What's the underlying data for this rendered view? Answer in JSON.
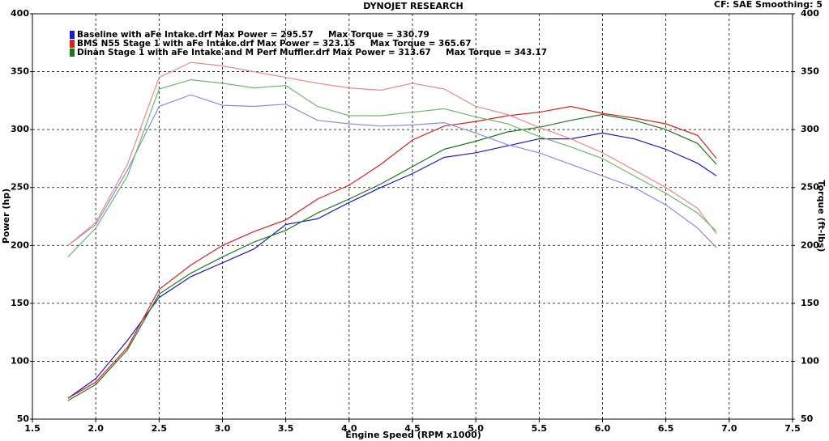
{
  "chart_data": {
    "type": "line",
    "title": "DYNOJET RESEARCH",
    "subtitle": "CF: SAE  Smoothing: 5",
    "xlabel": "Engine Speed (RPM x1000)",
    "ylabel": "Power (hp)",
    "y2label": "Torque (ft-lbs)",
    "xlim": [
      1.5,
      7.5
    ],
    "xticks": [
      1.5,
      {
        "value": 2,
        "label": "2.0"
      },
      2.5,
      {
        "value": 3,
        "label": "3.0"
      },
      3.5,
      {
        "value": 4,
        "label": "4.0"
      },
      4.5,
      {
        "value": 5,
        "label": "5.0"
      },
      5.5,
      {
        "value": 6,
        "label": "6.0"
      },
      6.5,
      {
        "value": 7,
        "label": "7.0"
      },
      7.5
    ],
    "ylim": [
      50,
      400
    ],
    "yticks": [
      50,
      100,
      150,
      200,
      250,
      300,
      350,
      400
    ],
    "y2lim": [
      50,
      400
    ],
    "y2ticks": [
      50,
      100,
      150,
      200,
      250,
      300,
      350,
      400
    ],
    "grid": true,
    "x": [
      1.78,
      2.0,
      2.25,
      2.5,
      2.75,
      3.0,
      3.25,
      3.5,
      3.75,
      4.0,
      4.25,
      4.5,
      4.75,
      5.0,
      5.25,
      5.5,
      5.75,
      6.0,
      6.25,
      6.5,
      6.75,
      6.9
    ],
    "series": [
      {
        "name": "Baseline with aFe Intake.drf Max Power = 295.57     Max Torque = 330.79",
        "color": "#1b1bc8",
        "values": [
          68,
          85,
          118,
          155,
          173,
          185,
          197,
          218,
          223,
          237,
          250,
          262,
          276,
          280,
          286,
          292,
          292,
          297,
          292,
          283,
          271,
          260
        ]
      },
      {
        "name": "BMS N55 Stage 1 with aFe Intake.drf Max Power = 323.15     Max Torque = 365.67",
        "color": "#d82020",
        "values": [
          68,
          82,
          112,
          162,
          183,
          200,
          212,
          222,
          240,
          252,
          270,
          291,
          303,
          307,
          312,
          315,
          320,
          314,
          310,
          305,
          295,
          275
        ]
      },
      {
        "name": "Dinan Stage 1 with aFe Intake and M Perf Muffler.drf Max Power = 313.67     Max Torque = 343.17",
        "color": "#1a7a1a",
        "values": [
          66,
          80,
          110,
          158,
          176,
          190,
          203,
          213,
          228,
          240,
          253,
          268,
          283,
          290,
          298,
          302,
          308,
          313,
          308,
          300,
          288,
          270
        ]
      },
      {
        "axis": "y2",
        "color": "#8a8ae6",
        "values": [
          200,
          218,
          265,
          320,
          330,
          321,
          320,
          322,
          308,
          305,
          303,
          304,
          306,
          297,
          287,
          280,
          270,
          260,
          250,
          235,
          215,
          198
        ]
      },
      {
        "axis": "y2",
        "color": "#ea8a8a",
        "values": [
          200,
          220,
          270,
          345,
          358,
          355,
          350,
          345,
          340,
          336,
          334,
          340,
          335,
          320,
          313,
          302,
          292,
          280,
          265,
          250,
          232,
          210
        ]
      },
      {
        "axis": "y2",
        "color": "#6ab86a",
        "values": [
          190,
          215,
          260,
          335,
          343,
          340,
          336,
          338,
          320,
          312,
          312,
          315,
          318,
          311,
          305,
          294,
          285,
          275,
          260,
          245,
          228,
          212
        ]
      }
    ]
  }
}
